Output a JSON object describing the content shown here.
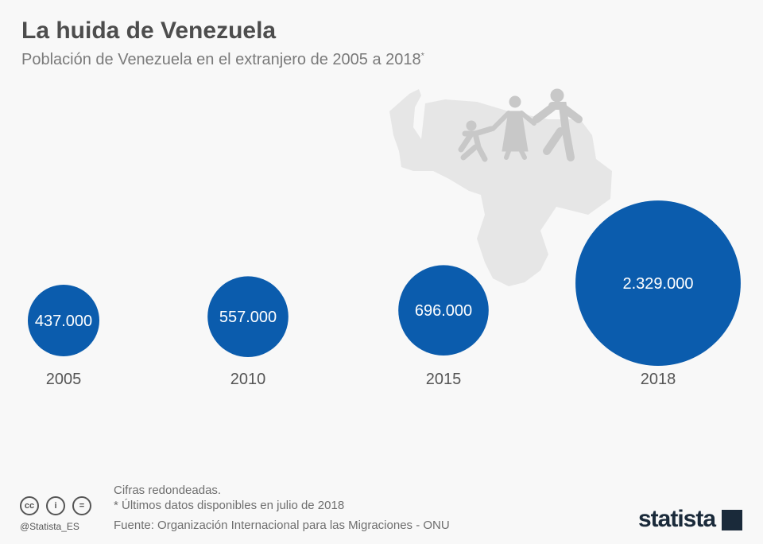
{
  "header": {
    "title": "La huida de Venezuela",
    "subtitle": "Población de Venezuela en el extranjero de 2005 a 2018",
    "subtitle_mark": "*"
  },
  "chart_data": {
    "type": "bubble",
    "title": "La huida de Venezuela",
    "subtitle": "Población de Venezuela en el extranjero de 2005 a 2018*",
    "categories": [
      "2005",
      "2010",
      "2015",
      "2018"
    ],
    "values": [
      437000,
      557000,
      696000,
      2329000
    ],
    "data_labels": [
      "437.000",
      "557.000",
      "696.000",
      "2.329.000"
    ],
    "color": "#0b5cad",
    "grid": false
  },
  "footer": {
    "note1": "Cifras redondeadas.",
    "note2": "* Últimos datos disponibles en julio de 2018",
    "source": "Fuente: Organización Internacional para las Migraciones - ONU",
    "handle": "@Statista_ES",
    "license_icons": [
      "cc-icon",
      "by-icon",
      "nd-icon"
    ],
    "cc_labels": [
      "cc",
      "i",
      "="
    ],
    "logo": "statista"
  }
}
